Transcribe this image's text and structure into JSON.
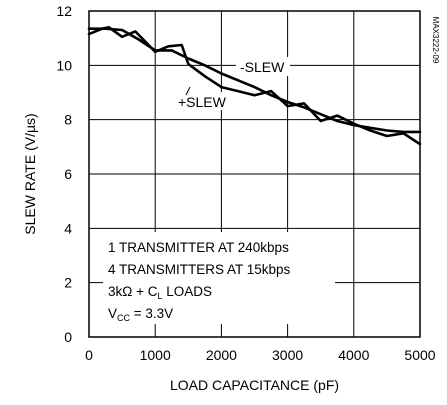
{
  "chart_data": {
    "type": "line",
    "xlabel": "LOAD CAPACITANCE (pF)",
    "ylabel": "SLEW RATE (V/µs)",
    "xlim": [
      0,
      5000
    ],
    "ylim": [
      0,
      12
    ],
    "xticks": [
      0,
      1000,
      2000,
      3000,
      4000,
      5000
    ],
    "yticks": [
      0,
      2,
      4,
      6,
      8,
      10,
      12
    ],
    "grid": true,
    "figure_code": "MAX3222-09",
    "series": [
      {
        "name": "-SLEW",
        "x": [
          0,
          250,
          500,
          750,
          1000,
          1250,
          1500,
          1750,
          2000,
          2250,
          2500,
          2750,
          3000,
          3250,
          3500,
          3750,
          4000,
          4250,
          4500,
          4750,
          5000
        ],
        "y": [
          11.35,
          11.35,
          11.3,
          10.95,
          10.55,
          10.55,
          10.25,
          10.0,
          9.7,
          9.45,
          9.2,
          8.9,
          8.65,
          8.45,
          8.2,
          7.95,
          7.8,
          7.7,
          7.6,
          7.55,
          7.55
        ]
      },
      {
        "name": "+SLEW",
        "x": [
          0,
          200,
          300,
          500,
          700,
          1000,
          1200,
          1400,
          1500,
          1750,
          2000,
          2250,
          2500,
          2750,
          3000,
          3250,
          3500,
          3750,
          4000,
          4250,
          4500,
          4750,
          5000
        ],
        "y": [
          11.15,
          11.35,
          11.4,
          11.05,
          11.25,
          10.5,
          10.7,
          10.75,
          10.05,
          9.6,
          9.2,
          9.05,
          8.9,
          9.05,
          8.5,
          8.6,
          7.95,
          8.15,
          7.85,
          7.6,
          7.4,
          7.5,
          7.1
        ]
      }
    ],
    "legend_lines": [
      "1 TRANSMITTER AT 240kbps",
      "4 TRANSMITTERS AT 15kbps",
      "3kΩ + C",
      "L",
      " LOADS",
      "V",
      "CC",
      " = 3.3V"
    ]
  }
}
